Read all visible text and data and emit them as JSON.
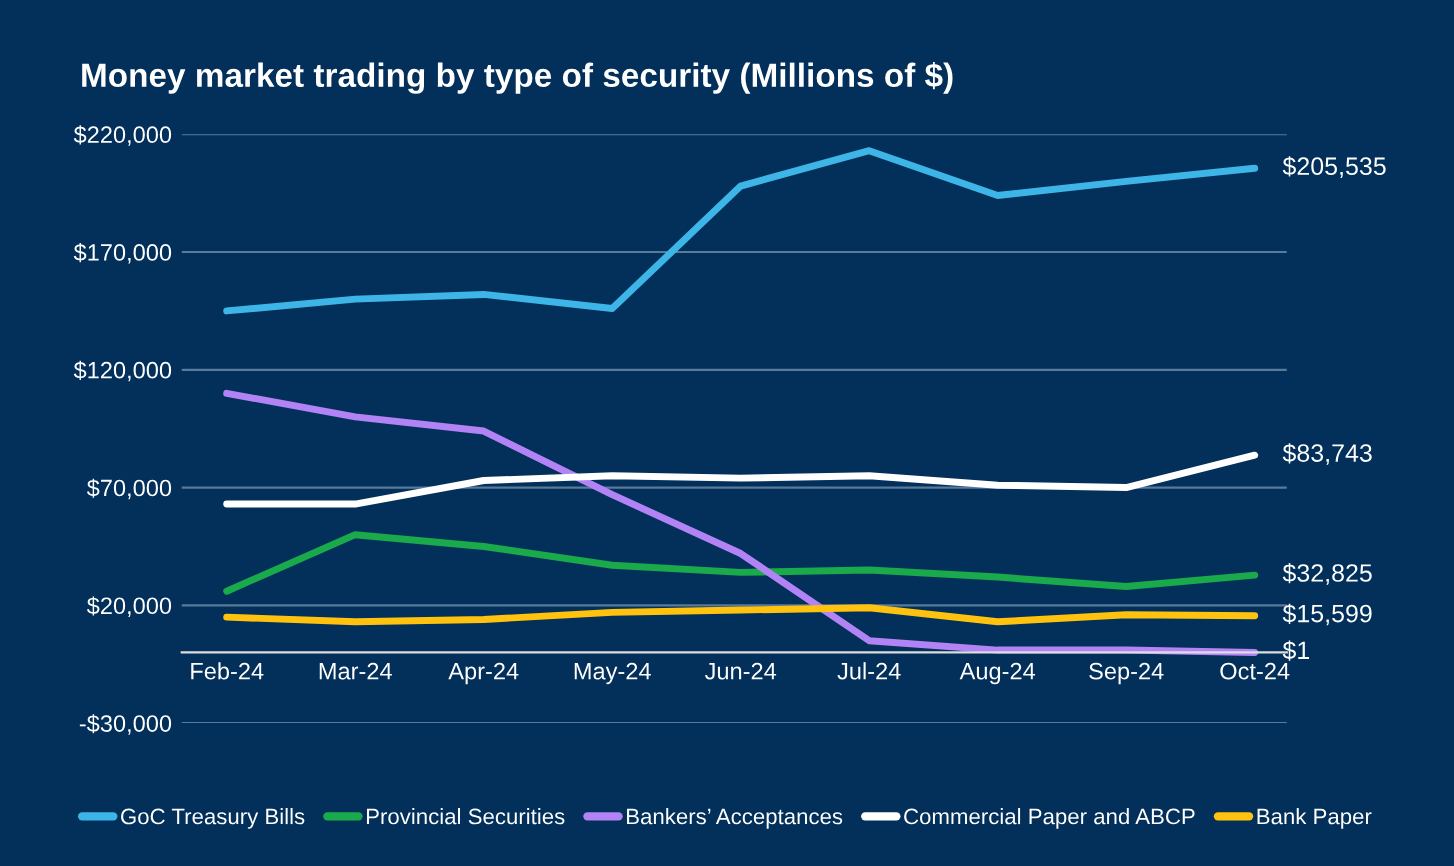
{
  "chart_data": {
    "type": "line",
    "title": "Money market trading by type of security (Millions of $)",
    "categories": [
      "Feb-24",
      "Mar-24",
      "Apr-24",
      "May-24",
      "Jun-24",
      "Jul-24",
      "Aug-24",
      "Sep-24",
      "Oct-24"
    ],
    "series": [
      {
        "name": "GoC Treasury Bills",
        "color": "#3db5e6",
        "values": [
          145000,
          150000,
          152000,
          146000,
          198000,
          213000,
          194000,
          200000,
          205535
        ],
        "value_labels": [
          null,
          null,
          null,
          null,
          null,
          null,
          null,
          null,
          "$205,535"
        ]
      },
      {
        "name": "Provincial Securities",
        "color": "#1aaa4b",
        "values": [
          26000,
          50000,
          45000,
          37000,
          34000,
          35000,
          32000,
          28000,
          32825
        ],
        "value_labels": [
          null,
          null,
          null,
          null,
          null,
          null,
          null,
          null,
          "$32,825"
        ]
      },
      {
        "name": "Bankers’ Acceptances",
        "color": "#b283f5",
        "values": [
          110000,
          100000,
          94000,
          67000,
          42000,
          5000,
          1000,
          1000,
          1
        ],
        "value_labels": [
          null,
          null,
          null,
          null,
          null,
          null,
          null,
          null,
          "$1"
        ]
      },
      {
        "name": "Commercial Paper and ABCP",
        "color": "#ffffff",
        "values": [
          63000,
          63000,
          73000,
          75000,
          74000,
          75000,
          71000,
          70000,
          83743
        ],
        "value_labels": [
          null,
          null,
          null,
          null,
          null,
          null,
          null,
          null,
          "$83,743"
        ]
      },
      {
        "name": "Bank Paper",
        "color": "#ffc20e",
        "values": [
          15000,
          13000,
          14000,
          17000,
          18000,
          19000,
          13000,
          16000,
          15599
        ],
        "value_labels": [
          null,
          null,
          null,
          null,
          null,
          null,
          null,
          null,
          "$15,599"
        ]
      }
    ],
    "ylim": [
      -30000,
      220000
    ],
    "yticks": [
      {
        "value": -30000,
        "label": "-$30,000"
      },
      {
        "value": 20000,
        "label": "$20,000"
      },
      {
        "value": 70000,
        "label": "$70,000"
      },
      {
        "value": 120000,
        "label": "$120,000"
      },
      {
        "value": 170000,
        "label": "$170,000"
      },
      {
        "value": 220000,
        "label": "$220,000"
      }
    ],
    "grid": "y",
    "legend": "bottom",
    "marker": "none",
    "line_style": "solid"
  }
}
